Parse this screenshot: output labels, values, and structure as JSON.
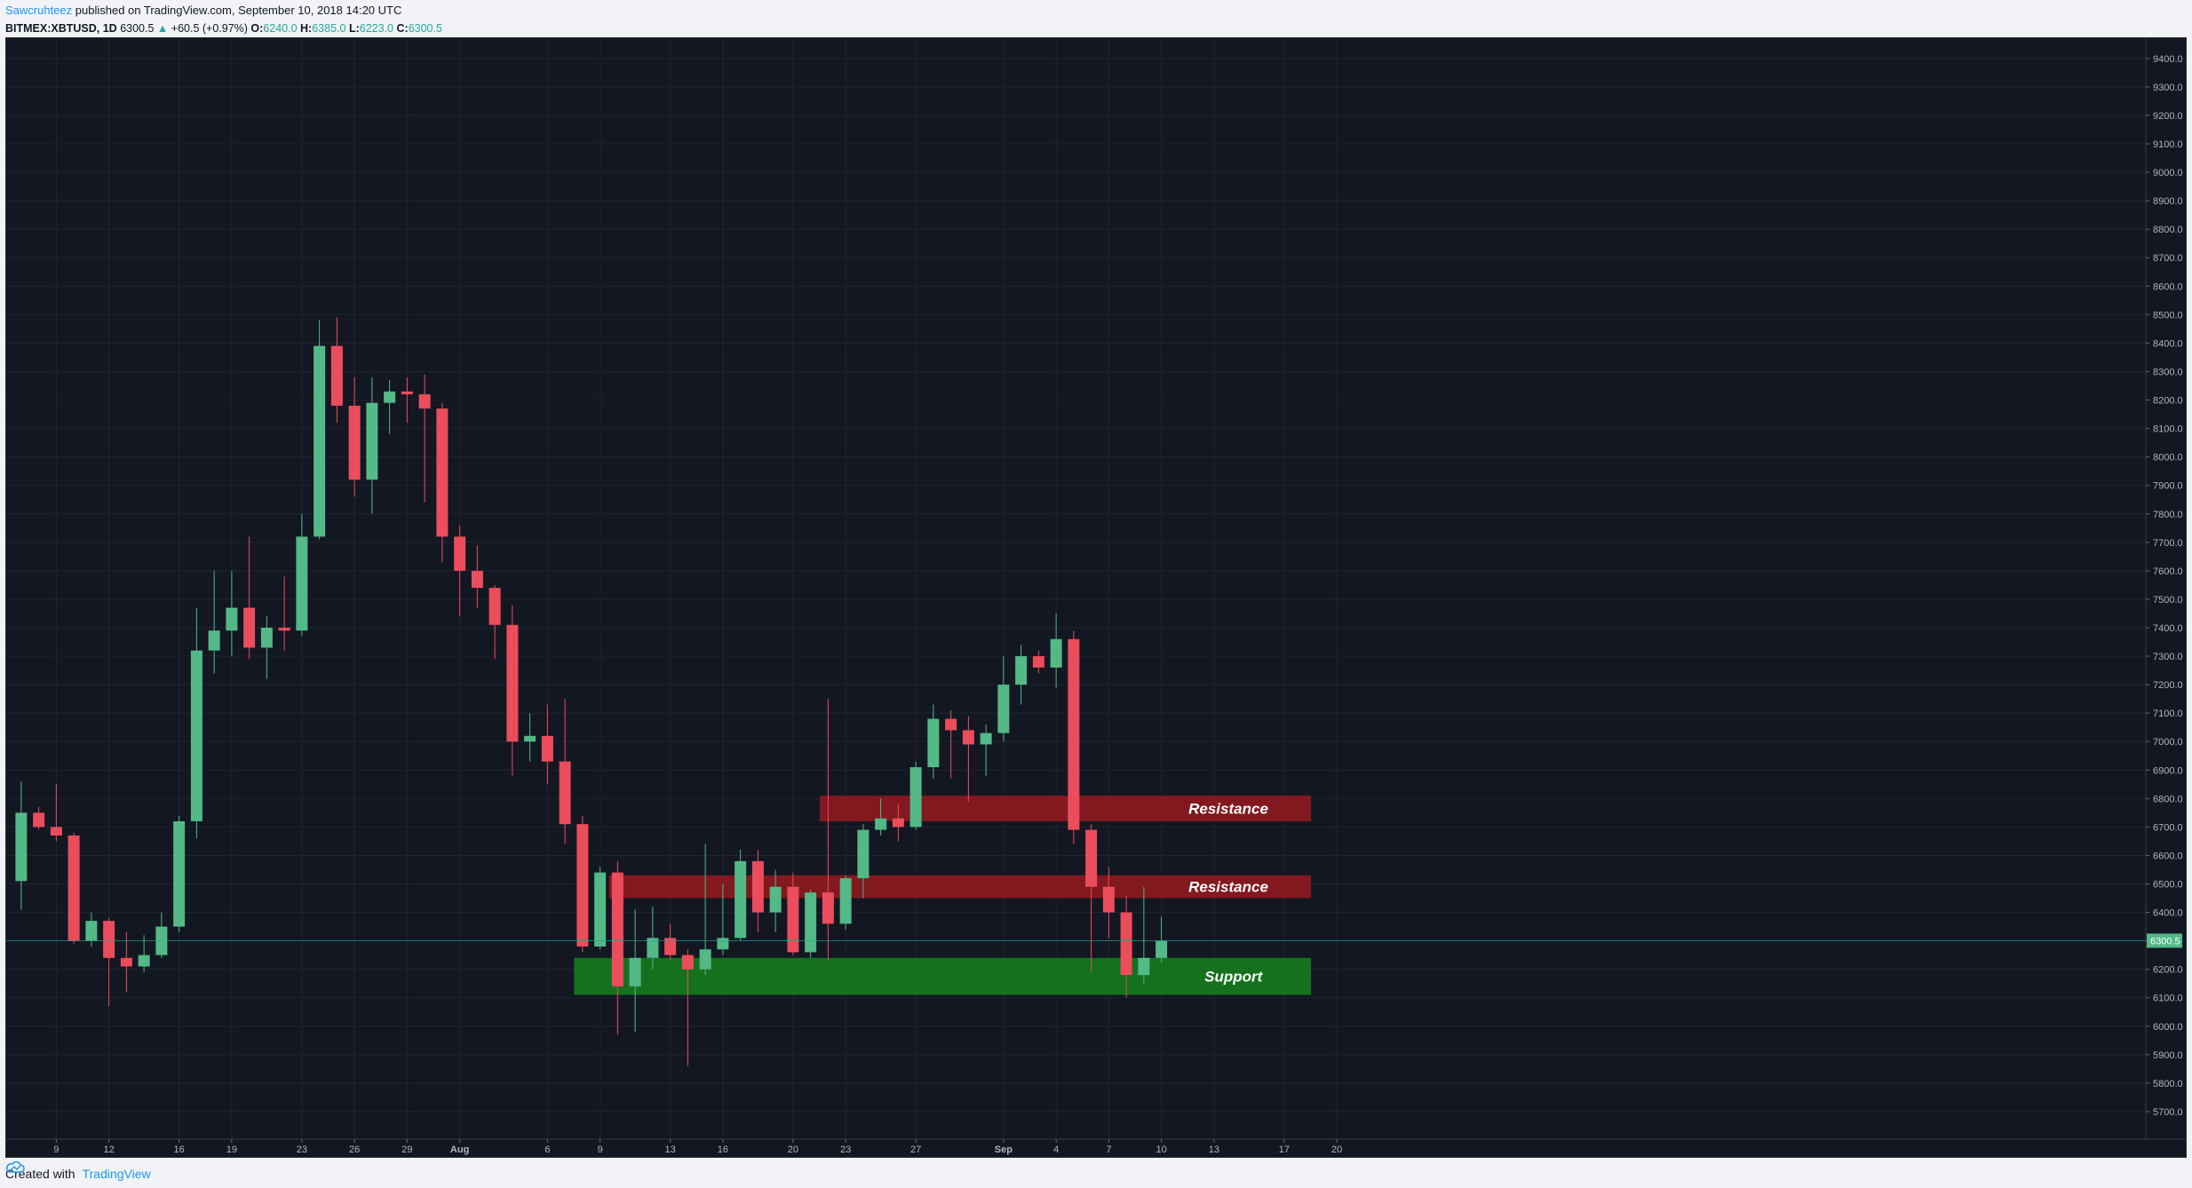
{
  "header": {
    "author": "Sawcruhteez",
    "published": " published on TradingView.com, September 10, 2018 14:20 UTC",
    "symbol": "BITMEX:XBTUSD, 1D",
    "price": "6300.5",
    "change_arrow": "▲",
    "change": "+60.5 (+0.97%)",
    "o_label": "O:",
    "o_value": "6240.0",
    "h_label": "H:",
    "h_value": "6385.0",
    "l_label": "L:",
    "l_value": "6223.0",
    "c_label": "C:",
    "c_value": "6300.5"
  },
  "footer": {
    "created_with": "Created with",
    "brand": "TradingView",
    "brand_icon": "tradingview-cloud-icon"
  },
  "colors": {
    "background": "#131722",
    "up": "#53b987",
    "down": "#eb4d5c",
    "resistance_zone": "#8b1a1f",
    "support_zone": "#167a1e",
    "grid": "#1f2430",
    "price_line": "#26a69a"
  },
  "chart_data": {
    "type": "candlestick",
    "symbol": "BITMEX:XBTUSD",
    "interval": "1D",
    "ylim": [
      5650,
      9440
    ],
    "y_ticks": [
      5700,
      5800,
      5900,
      6000,
      6100,
      6200,
      6300,
      6400,
      6500,
      6600,
      6700,
      6800,
      6900,
      7000,
      7100,
      7200,
      7300,
      7400,
      7500,
      7600,
      7700,
      7800,
      7900,
      8000,
      8100,
      8200,
      8300,
      8400,
      8500,
      8600,
      8700,
      8800,
      8900,
      9000,
      9100,
      9200,
      9300,
      9400
    ],
    "x_ticks": [
      {
        "label": "9",
        "day": 9
      },
      {
        "label": "12",
        "day": 12
      },
      {
        "label": "16",
        "day": 16
      },
      {
        "label": "19",
        "day": 19
      },
      {
        "label": "23",
        "day": 23
      },
      {
        "label": "26",
        "day": 26
      },
      {
        "label": "29",
        "day": 29
      },
      {
        "label": "Aug",
        "day": 32
      },
      {
        "label": "6",
        "day": 37
      },
      {
        "label": "9",
        "day": 40
      },
      {
        "label": "13",
        "day": 44
      },
      {
        "label": "16",
        "day": 47
      },
      {
        "label": "20",
        "day": 51
      },
      {
        "label": "23",
        "day": 54
      },
      {
        "label": "27",
        "day": 58
      },
      {
        "label": "Sep",
        "day": 63
      },
      {
        "label": "4",
        "day": 66
      },
      {
        "label": "7",
        "day": 69
      },
      {
        "label": "10",
        "day": 72
      },
      {
        "label": "13",
        "day": 75
      },
      {
        "label": "17",
        "day": 79
      },
      {
        "label": "20",
        "day": 82
      }
    ],
    "candles": [
      {
        "day": 7,
        "o": 6510,
        "h": 6860,
        "l": 6410,
        "c": 6750
      },
      {
        "day": 8,
        "o": 6750,
        "h": 6770,
        "l": 6690,
        "c": 6700
      },
      {
        "day": 9,
        "o": 6700,
        "h": 6850,
        "l": 6650,
        "c": 6670
      },
      {
        "day": 10,
        "o": 6670,
        "h": 6680,
        "l": 6290,
        "c": 6300
      },
      {
        "day": 11,
        "o": 6300,
        "h": 6400,
        "l": 6280,
        "c": 6370
      },
      {
        "day": 12,
        "o": 6370,
        "h": 6380,
        "l": 6070,
        "c": 6240
      },
      {
        "day": 13,
        "o": 6240,
        "h": 6330,
        "l": 6120,
        "c": 6210
      },
      {
        "day": 14,
        "o": 6210,
        "h": 6320,
        "l": 6190,
        "c": 6250
      },
      {
        "day": 15,
        "o": 6250,
        "h": 6400,
        "l": 6240,
        "c": 6350
      },
      {
        "day": 16,
        "o": 6350,
        "h": 6740,
        "l": 6330,
        "c": 6720
      },
      {
        "day": 17,
        "o": 6720,
        "h": 7470,
        "l": 6660,
        "c": 7320
      },
      {
        "day": 18,
        "o": 7320,
        "h": 7600,
        "l": 7240,
        "c": 7390
      },
      {
        "day": 19,
        "o": 7390,
        "h": 7600,
        "l": 7300,
        "c": 7470
      },
      {
        "day": 20,
        "o": 7470,
        "h": 7720,
        "l": 7290,
        "c": 7330
      },
      {
        "day": 21,
        "o": 7330,
        "h": 7440,
        "l": 7220,
        "c": 7400
      },
      {
        "day": 22,
        "o": 7400,
        "h": 7580,
        "l": 7320,
        "c": 7390
      },
      {
        "day": 23,
        "o": 7390,
        "h": 7800,
        "l": 7370,
        "c": 7720
      },
      {
        "day": 24,
        "o": 7720,
        "h": 8480,
        "l": 7710,
        "c": 8390
      },
      {
        "day": 25,
        "o": 8390,
        "h": 8490,
        "l": 8120,
        "c": 8180
      },
      {
        "day": 26,
        "o": 8180,
        "h": 8280,
        "l": 7860,
        "c": 7920
      },
      {
        "day": 27,
        "o": 7920,
        "h": 8280,
        "l": 7800,
        "c": 8190
      },
      {
        "day": 28,
        "o": 8190,
        "h": 8270,
        "l": 8080,
        "c": 8230
      },
      {
        "day": 29,
        "o": 8230,
        "h": 8280,
        "l": 8120,
        "c": 8220
      },
      {
        "day": 30,
        "o": 8220,
        "h": 8290,
        "l": 7840,
        "c": 8170
      },
      {
        "day": 31,
        "o": 8170,
        "h": 8190,
        "l": 7630,
        "c": 7720
      },
      {
        "day": 32,
        "o": 7720,
        "h": 7760,
        "l": 7440,
        "c": 7600
      },
      {
        "day": 33,
        "o": 7600,
        "h": 7690,
        "l": 7470,
        "c": 7540
      },
      {
        "day": 34,
        "o": 7540,
        "h": 7550,
        "l": 7290,
        "c": 7410
      },
      {
        "day": 35,
        "o": 7410,
        "h": 7480,
        "l": 6880,
        "c": 7000
      },
      {
        "day": 36,
        "o": 7000,
        "h": 7100,
        "l": 6930,
        "c": 7020
      },
      {
        "day": 37,
        "o": 7020,
        "h": 7130,
        "l": 6850,
        "c": 6930
      },
      {
        "day": 38,
        "o": 6930,
        "h": 7150,
        "l": 6640,
        "c": 6710
      },
      {
        "day": 39,
        "o": 6710,
        "h": 6740,
        "l": 6260,
        "c": 6280
      },
      {
        "day": 40,
        "o": 6280,
        "h": 6560,
        "l": 6270,
        "c": 6540
      },
      {
        "day": 41,
        "o": 6540,
        "h": 6580,
        "l": 5970,
        "c": 6140
      },
      {
        "day": 42,
        "o": 6140,
        "h": 6410,
        "l": 5980,
        "c": 6240
      },
      {
        "day": 43,
        "o": 6240,
        "h": 6420,
        "l": 6200,
        "c": 6310
      },
      {
        "day": 44,
        "o": 6310,
        "h": 6360,
        "l": 6230,
        "c": 6250
      },
      {
        "day": 45,
        "o": 6250,
        "h": 6270,
        "l": 5860,
        "c": 6200
      },
      {
        "day": 46,
        "o": 6200,
        "h": 6640,
        "l": 6180,
        "c": 6270
      },
      {
        "day": 47,
        "o": 6270,
        "h": 6500,
        "l": 6250,
        "c": 6310
      },
      {
        "day": 48,
        "o": 6310,
        "h": 6620,
        "l": 6300,
        "c": 6580
      },
      {
        "day": 49,
        "o": 6580,
        "h": 6620,
        "l": 6330,
        "c": 6400
      },
      {
        "day": 50,
        "o": 6400,
        "h": 6550,
        "l": 6330,
        "c": 6490
      },
      {
        "day": 51,
        "o": 6490,
        "h": 6540,
        "l": 6250,
        "c": 6260
      },
      {
        "day": 52,
        "o": 6260,
        "h": 6480,
        "l": 6240,
        "c": 6470
      },
      {
        "day": 53,
        "o": 6470,
        "h": 7150,
        "l": 6230,
        "c": 6360
      },
      {
        "day": 54,
        "o": 6360,
        "h": 6530,
        "l": 6340,
        "c": 6520
      },
      {
        "day": 55,
        "o": 6520,
        "h": 6710,
        "l": 6450,
        "c": 6690
      },
      {
        "day": 56,
        "o": 6690,
        "h": 6800,
        "l": 6670,
        "c": 6730
      },
      {
        "day": 57,
        "o": 6730,
        "h": 6780,
        "l": 6650,
        "c": 6700
      },
      {
        "day": 58,
        "o": 6700,
        "h": 6930,
        "l": 6690,
        "c": 6910
      },
      {
        "day": 59,
        "o": 6910,
        "h": 7130,
        "l": 6870,
        "c": 7080
      },
      {
        "day": 60,
        "o": 7080,
        "h": 7110,
        "l": 6870,
        "c": 7040
      },
      {
        "day": 61,
        "o": 7040,
        "h": 7090,
        "l": 6790,
        "c": 6990
      },
      {
        "day": 62,
        "o": 6990,
        "h": 7060,
        "l": 6880,
        "c": 7030
      },
      {
        "day": 63,
        "o": 7030,
        "h": 7300,
        "l": 7000,
        "c": 7200
      },
      {
        "day": 64,
        "o": 7200,
        "h": 7340,
        "l": 7130,
        "c": 7300
      },
      {
        "day": 65,
        "o": 7300,
        "h": 7320,
        "l": 7240,
        "c": 7260
      },
      {
        "day": 66,
        "o": 7260,
        "h": 7450,
        "l": 7190,
        "c": 7360
      },
      {
        "day": 67,
        "o": 7360,
        "h": 7390,
        "l": 6640,
        "c": 6690
      },
      {
        "day": 68,
        "o": 6690,
        "h": 6710,
        "l": 6190,
        "c": 6490
      },
      {
        "day": 69,
        "o": 6490,
        "h": 6560,
        "l": 6310,
        "c": 6400
      },
      {
        "day": 70,
        "o": 6400,
        "h": 6460,
        "l": 6100,
        "c": 6180
      },
      {
        "day": 71,
        "o": 6180,
        "h": 6490,
        "l": 6150,
        "c": 6240
      },
      {
        "day": 72,
        "o": 6240,
        "h": 6385,
        "l": 6223,
        "c": 6300.5
      }
    ],
    "zones": [
      {
        "label": "Resistance",
        "type": "resistance",
        "from_day": 53,
        "to_day": 80,
        "low": 6720,
        "high": 6810
      },
      {
        "label": "Resistance",
        "type": "resistance",
        "from_day": 41,
        "to_day": 80,
        "low": 6450,
        "high": 6530
      },
      {
        "label": "Support",
        "type": "support",
        "from_day": 39,
        "to_day": 80,
        "low": 6110,
        "high": 6240
      }
    ],
    "last_price": 6300.5,
    "last_price_label": "6300.5",
    "annotations": [
      {
        "text": "Resistance"
      },
      {
        "text": "Resistance"
      },
      {
        "text": "Support"
      }
    ]
  }
}
